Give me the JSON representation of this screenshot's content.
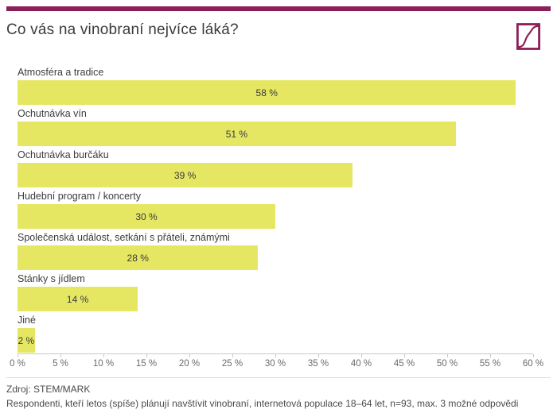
{
  "header": {
    "title": "Co vás na vinobraní nejvíce láká?"
  },
  "colors": {
    "accent": "#8c1f57",
    "bar": "#e5e763",
    "axis_line": "#c9c9c9",
    "title_text": "#3b3b3b",
    "label_text": "#3c3c3c",
    "tick_text": "#6a6a6a",
    "footer_text": "#4a4a4a"
  },
  "icons": {
    "logo": "stemmark-logo"
  },
  "chart_data": {
    "type": "bar",
    "orientation": "horizontal",
    "title": "Co vás na vinobraní nejvíce láká?",
    "categories": [
      "Atmosféra a tradice",
      "Ochutnávka vín",
      "Ochutnávka burčáku",
      "Hudební program / koncerty",
      "Společenská událost, setkání s přáteli, známými",
      "Stánky s jídlem",
      "Jiné"
    ],
    "values": [
      58,
      51,
      39,
      30,
      28,
      14,
      2
    ],
    "value_labels": [
      "58 %",
      "51 %",
      "39 %",
      "30 %",
      "28 %",
      "14 %",
      "2 %"
    ],
    "xlim": [
      0,
      60
    ],
    "x_tick_step": 5,
    "x_ticks": [
      "0 %",
      "5 %",
      "10 %",
      "15 %",
      "20 %",
      "25 %",
      "30 %",
      "35 %",
      "40 %",
      "45 %",
      "50 %",
      "55 %",
      "60 %"
    ],
    "grid": false,
    "legend": false,
    "value_label_position": "center-inside"
  },
  "footer": {
    "source": "Zdroj: STEM/MARK",
    "note": "Respondenti, kteří letos (spíše) plánují navštívit vinobraní, internetová populace 18–64 let, n=93, max. 3 možné odpovědi"
  }
}
